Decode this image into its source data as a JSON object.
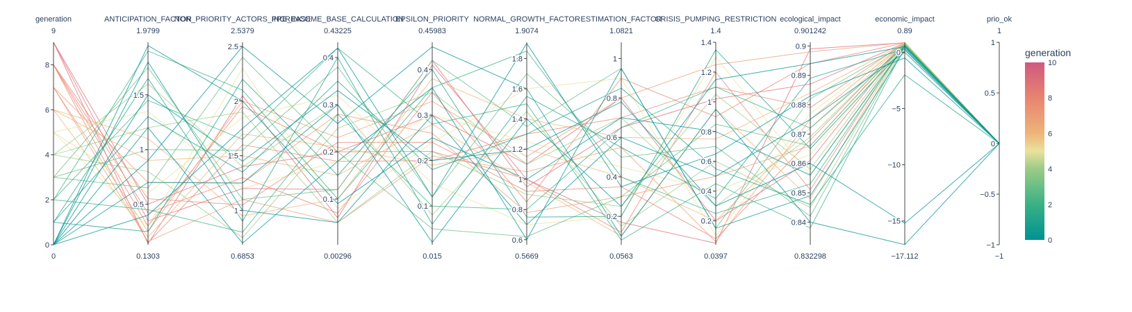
{
  "chart_data": {
    "type": "parallel_coordinates",
    "color_dimension": "generation",
    "colorbar": {
      "title": "generation",
      "range": [
        0,
        10
      ],
      "ticks": [
        "0",
        "2",
        "4",
        "6",
        "8",
        "10"
      ],
      "colorscale": [
        "#009B9E",
        "#42B7B9",
        "#A7D3D4",
        "#F1F1F1",
        "#E4C1D9",
        "#D691C1",
        "#C75DAB"
      ]
    },
    "dimensions": [
      {
        "name": "generation",
        "min": 0,
        "max": 9,
        "min_label": "0",
        "max_label": "9",
        "ticks": [
          "0",
          "2",
          "4",
          "6",
          "8"
        ]
      },
      {
        "name": "ANTICIPATION_FACTOR",
        "min": 0.1303,
        "max": 1.9799,
        "min_label": "0.1303",
        "max_label": "1.9799",
        "ticks": [
          "0.5",
          "1",
          "1.5"
        ]
      },
      {
        "name": "NON_PRIORITY_ACTORS_INCREASE",
        "min": 0.6853,
        "max": 2.5379,
        "min_label": "0.6853",
        "max_label": "2.5379",
        "ticks": [
          "1",
          "1.5",
          "2",
          "2.5"
        ]
      },
      {
        "name": "PRE_INCOME_BASE_CALCULATION",
        "min": 0.00296,
        "max": 0.43225,
        "min_label": "0.00296",
        "max_label": "0.43225",
        "ticks": [
          "0.1",
          "0.2",
          "0.3",
          "0.4"
        ]
      },
      {
        "name": "EPSILON_PRIORITY",
        "min": 0.015,
        "max": 0.45983,
        "min_label": "0.015",
        "max_label": "0.45983",
        "ticks": [
          "0.1",
          "0.2",
          "0.3",
          "0.4"
        ]
      },
      {
        "name": "NORMAL_GROWTH_FACTOR",
        "min": 0.5669,
        "max": 1.9074,
        "min_label": "0.5669",
        "max_label": "1.9074",
        "ticks": [
          "0.6",
          "0.8",
          "1",
          "1.2",
          "1.4",
          "1.6",
          "1.8"
        ]
      },
      {
        "name": "ESTIMATION_FACTOR",
        "min": 0.0563,
        "max": 1.0821,
        "min_label": "0.0563",
        "max_label": "1.0821",
        "ticks": [
          "0.2",
          "0.4",
          "0.6",
          "0.8",
          "1"
        ]
      },
      {
        "name": "CRISIS_PUMPING_RESTRICTION",
        "min": 0.0397,
        "max": 1.4,
        "min_label": "0.0397",
        "max_label": "1.4",
        "ticks": [
          "0.2",
          "0.4",
          "0.6",
          "0.8",
          "1",
          "1.2",
          "1.4"
        ]
      },
      {
        "name": "ecological_impact",
        "min": 0.832298,
        "max": 0.901242,
        "min_label": "0.832298",
        "max_label": "0.901242",
        "ticks": [
          "0.84",
          "0.85",
          "0.86",
          "0.87",
          "0.88",
          "0.89",
          "0.9"
        ]
      },
      {
        "name": "economic_impact",
        "min": -17.112,
        "max": 0.89,
        "min_label": "−17.112",
        "max_label": "0.89",
        "ticks": [
          "−15",
          "−10",
          "−5",
          "0"
        ]
      },
      {
        "name": "prio_ok",
        "min": -1,
        "max": 1,
        "min_label": "−1",
        "max_label": "1",
        "ticks": [
          "−1",
          "−0.5",
          "0",
          "0.5",
          "1"
        ]
      }
    ],
    "lines": [
      {
        "generation": 9,
        "values": [
          9,
          0.14,
          2.05,
          0.06,
          0.41,
          1.0,
          0.17,
          0.05,
          0.899,
          0.85,
          0
        ]
      },
      {
        "generation": 9,
        "values": [
          9,
          0.35,
          1.2,
          0.12,
          0.42,
          0.95,
          0.65,
          1.02,
          0.887,
          0.82,
          0
        ]
      },
      {
        "generation": 9,
        "values": [
          9,
          0.5,
          1.4,
          0.2,
          0.3,
          1.1,
          0.8,
          0.2,
          0.861,
          0.88,
          0
        ]
      },
      {
        "generation": 8,
        "values": [
          8,
          0.55,
          1.05,
          0.22,
          0.24,
          0.92,
          0.35,
          0.08,
          0.868,
          0.86,
          0
        ]
      },
      {
        "generation": 8,
        "values": [
          8,
          0.15,
          1.6,
          0.18,
          0.2,
          1.3,
          0.7,
          1.1,
          0.879,
          0.87,
          0
        ]
      },
      {
        "generation": 8,
        "values": [
          8,
          0.42,
          1.3,
          0.07,
          0.35,
          0.85,
          0.9,
          0.9,
          0.894,
          0.84,
          0
        ]
      },
      {
        "generation": 8,
        "values": [
          8,
          0.3,
          1.95,
          0.2,
          0.22,
          1.0,
          0.12,
          1.2,
          0.851,
          0.8,
          0
        ]
      },
      {
        "generation": 7,
        "values": [
          7,
          0.16,
          1.1,
          0.05,
          0.21,
          1.05,
          0.55,
          0.06,
          0.875,
          0.84,
          0
        ]
      },
      {
        "generation": 7,
        "values": [
          7,
          0.7,
          1.25,
          0.28,
          0.26,
          0.78,
          0.3,
          0.5,
          0.866,
          0.83,
          0
        ]
      },
      {
        "generation": 7,
        "values": [
          7,
          0.25,
          2.0,
          0.23,
          0.33,
          1.15,
          0.8,
          1.25,
          0.898,
          0.86,
          0
        ]
      },
      {
        "generation": 6,
        "values": [
          6,
          0.9,
          1.5,
          0.15,
          0.28,
          0.98,
          0.1,
          0.95,
          0.848,
          0.81,
          0
        ]
      },
      {
        "generation": 6,
        "values": [
          6,
          0.2,
          1.7,
          0.21,
          0.19,
          1.2,
          0.4,
          0.2,
          0.872,
          0.85,
          0
        ]
      },
      {
        "generation": 6,
        "values": [
          6,
          1.1,
          0.95,
          0.1,
          0.38,
          1.4,
          0.6,
          0.75,
          0.884,
          0.79,
          0
        ]
      },
      {
        "generation": 5,
        "values": [
          5,
          0.6,
          1.85,
          0.32,
          0.15,
          0.7,
          0.2,
          1.3,
          0.856,
          0.8,
          0
        ]
      },
      {
        "generation": 5,
        "values": [
          5,
          1.35,
          1.2,
          0.18,
          0.3,
          1.25,
          0.45,
          0.4,
          0.863,
          0.82,
          0
        ]
      },
      {
        "generation": 5,
        "values": [
          5,
          0.3,
          2.3,
          0.08,
          0.24,
          1.6,
          0.9,
          0.1,
          0.877,
          0.88,
          0
        ]
      },
      {
        "generation": 4,
        "values": [
          4,
          1.6,
          1.4,
          0.3,
          0.08,
          1.45,
          0.15,
          0.6,
          0.845,
          0.75,
          0
        ]
      },
      {
        "generation": 4,
        "values": [
          4,
          0.8,
          0.75,
          0.25,
          0.35,
          1.1,
          0.7,
          0.3,
          0.869,
          0.77,
          0
        ]
      },
      {
        "generation": 4,
        "values": [
          4,
          1.2,
          1.9,
          0.05,
          0.22,
          0.9,
          0.25,
          1.05,
          0.858,
          0.83,
          0
        ]
      },
      {
        "generation": 3,
        "values": [
          3,
          1.0,
          1.55,
          0.38,
          0.12,
          1.7,
          0.5,
          0.7,
          0.842,
          0.6,
          0
        ]
      },
      {
        "generation": 3,
        "values": [
          3,
          1.75,
          1.1,
          0.12,
          0.42,
          1.35,
          0.95,
          0.15,
          0.882,
          0.7,
          0
        ]
      },
      {
        "generation": 3,
        "values": [
          3,
          0.65,
          2.4,
          0.2,
          0.05,
          0.62,
          0.3,
          0.85,
          0.866,
          0.74,
          0
        ]
      },
      {
        "generation": 2,
        "values": [
          2,
          1.45,
          1.65,
          0.42,
          0.28,
          1.5,
          0.08,
          0.45,
          0.838,
          0.5,
          0
        ]
      },
      {
        "generation": 2,
        "values": [
          2,
          0.45,
          0.8,
          0.28,
          0.1,
          0.8,
          0.65,
          1.1,
          0.872,
          0.55,
          0
        ]
      },
      {
        "generation": 2,
        "values": [
          2,
          1.9,
          2.1,
          0.1,
          0.36,
          1.85,
          0.4,
          0.25,
          0.853,
          0.65,
          0
        ]
      },
      {
        "generation": 1,
        "values": [
          1,
          1.3,
          1.35,
          0.35,
          0.18,
          1.3,
          0.85,
          0.55,
          0.846,
          -2.0,
          0
        ]
      },
      {
        "generation": 1,
        "values": [
          1,
          0.25,
          2.2,
          0.15,
          0.4,
          0.75,
          0.2,
          1.35,
          0.865,
          0.4,
          0
        ]
      },
      {
        "generation": 1,
        "values": [
          1,
          1.65,
          0.9,
          0.4,
          0.06,
          1.55,
          0.55,
          0.35,
          0.889,
          0.3,
          0
        ]
      },
      {
        "generation": 0,
        "values": [
          0,
          1.5,
          1.45,
          0.33,
          0.2,
          1.2,
          0.78,
          0.3,
          0.86,
          -15.2,
          0
        ]
      },
      {
        "generation": 0,
        "values": [
          0,
          0.9,
          2.5,
          0.26,
          0.45,
          1.6,
          0.1,
          0.95,
          0.84,
          -17.1,
          0
        ]
      },
      {
        "generation": 0,
        "values": [
          0,
          1.8,
          1.0,
          0.05,
          0.3,
          0.7,
          0.6,
          0.5,
          0.875,
          0.0,
          0
        ]
      },
      {
        "generation": 0,
        "values": [
          0,
          0.4,
          1.75,
          0.42,
          0.12,
          1.9,
          0.35,
          0.65,
          0.883,
          -0.5,
          0
        ]
      },
      {
        "generation": 0,
        "values": [
          0,
          1.2,
          0.7,
          0.18,
          0.36,
          0.6,
          0.95,
          0.15,
          0.849,
          0.2,
          0
        ]
      },
      {
        "generation": 0,
        "values": [
          0,
          0.7,
          1.25,
          0.3,
          0.02,
          1.4,
          0.25,
          1.15,
          0.894,
          0.5,
          0
        ]
      },
      {
        "generation": 0,
        "values": [
          0,
          1.95,
          2.0,
          0.09,
          0.25,
          1.0,
          0.7,
          0.8,
          0.856,
          0.6,
          0
        ]
      }
    ]
  }
}
